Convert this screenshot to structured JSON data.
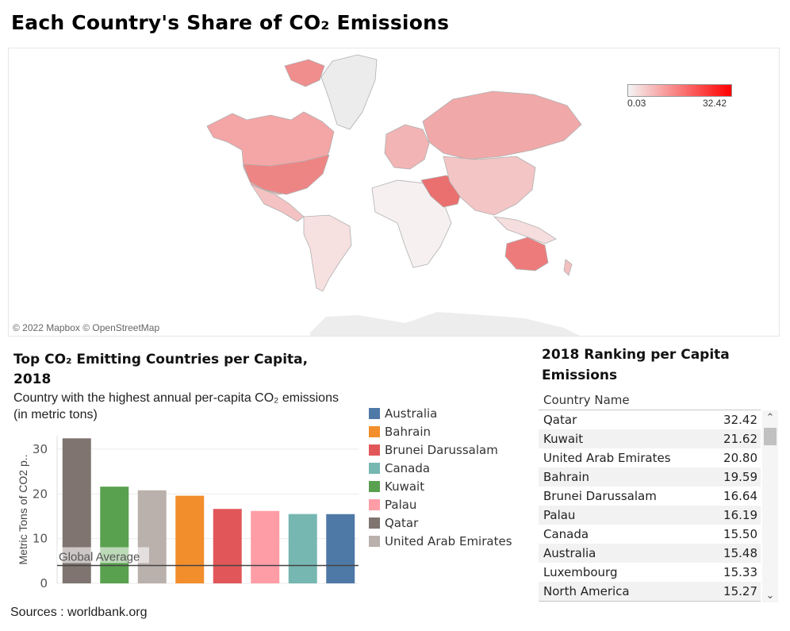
{
  "page": {
    "title": "Each Country's Share of CO₂ Emissions",
    "sources": "Sources : worldbank.org"
  },
  "map": {
    "credit": "© 2022 Mapbox © OpenStreetMap",
    "legend": {
      "min": "0.03",
      "max": "32.42",
      "min_color": "#f4f4f4",
      "max_color": "#ff0000"
    }
  },
  "chart": {
    "title": "Top CO₂ Emitting Countries per Capita, 2018",
    "subtitle": "Country with the highest annual per-capita CO₂ emissions (in metric tons)",
    "ylabel": "Metric Tons of CO2 p..",
    "reference_label": "Global Average"
  },
  "chart_data": {
    "type": "bar",
    "categories": [
      "Qatar",
      "Kuwait",
      "United Arab Emirates",
      "Bahrain",
      "Brunei Darussalam",
      "Palau",
      "Canada",
      "Australia"
    ],
    "values": [
      32.42,
      21.62,
      20.8,
      19.59,
      16.64,
      16.19,
      15.5,
      15.48
    ],
    "colors": [
      "#7f7470",
      "#59a14f",
      "#bab0ac",
      "#f28e2b",
      "#e15759",
      "#ff9da7",
      "#76b7b2",
      "#4e79a7"
    ],
    "yticks": [
      0,
      10,
      20,
      30
    ],
    "ylim": [
      0,
      33
    ],
    "reference_line": 4.0,
    "legend": [
      {
        "name": "Australia",
        "color": "#4e79a7"
      },
      {
        "name": "Bahrain",
        "color": "#f28e2b"
      },
      {
        "name": "Brunei Darussalam",
        "color": "#e15759"
      },
      {
        "name": "Canada",
        "color": "#76b7b2"
      },
      {
        "name": "Kuwait",
        "color": "#59a14f"
      },
      {
        "name": "Palau",
        "color": "#ff9da7"
      },
      {
        "name": "Qatar",
        "color": "#7f7470"
      },
      {
        "name": "United Arab Emirates",
        "color": "#bab0ac"
      }
    ]
  },
  "ranking": {
    "title": "2018 Ranking per Capita Emissions",
    "column": "Country Name",
    "rows": [
      {
        "name": "Qatar",
        "value": "32.42"
      },
      {
        "name": "Kuwait",
        "value": "21.62"
      },
      {
        "name": "United Arab Emirates",
        "value": "20.80"
      },
      {
        "name": "Bahrain",
        "value": "19.59"
      },
      {
        "name": "Brunei Darussalam",
        "value": "16.64"
      },
      {
        "name": "Palau",
        "value": "16.19"
      },
      {
        "name": "Canada",
        "value": "15.50"
      },
      {
        "name": "Australia",
        "value": "15.48"
      },
      {
        "name": "Luxembourg",
        "value": "15.33"
      },
      {
        "name": "North America",
        "value": "15.27"
      }
    ]
  }
}
